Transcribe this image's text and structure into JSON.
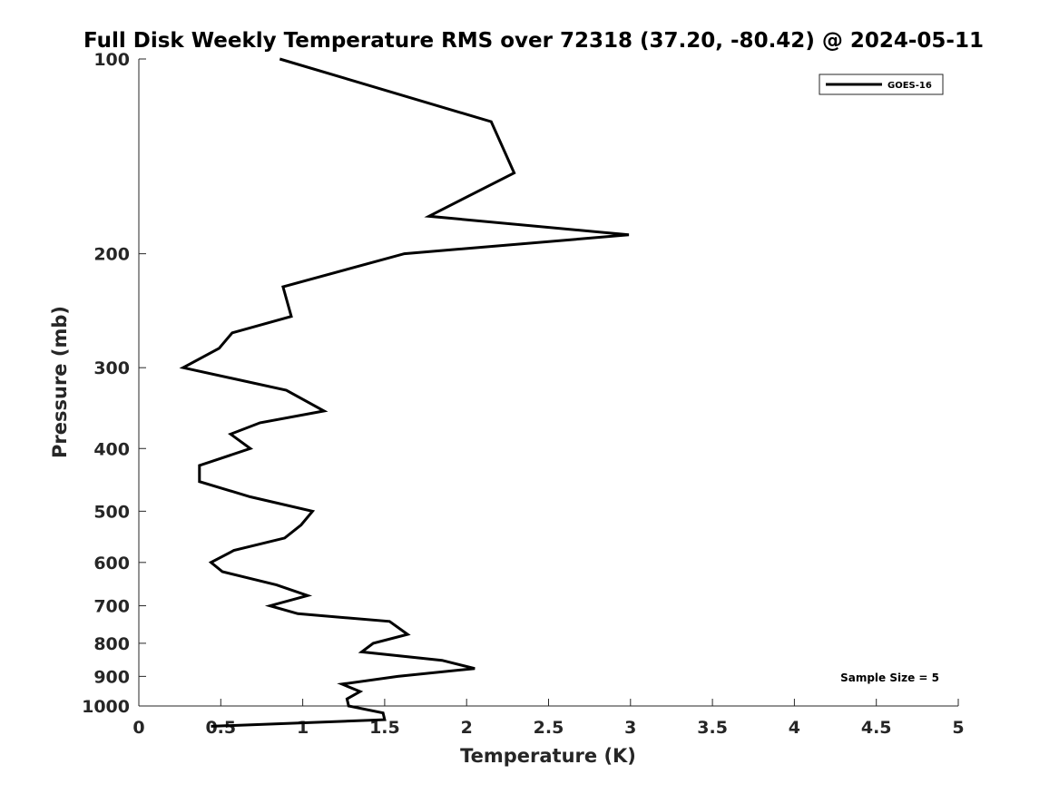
{
  "chart_data": {
    "type": "line",
    "title": "Full Disk Weekly Temperature RMS over 72318 (37.20, -80.42) @ 2024-05-11",
    "xlabel": "Temperature (K)",
    "ylabel": "Pressure (mb)",
    "xlim": [
      0,
      5
    ],
    "ylim": [
      100,
      1000
    ],
    "y_scale": "log",
    "y_reversed": true,
    "grid": false,
    "x_ticks": [
      "0",
      "0.5",
      "1",
      "1.5",
      "2",
      "2.5",
      "3",
      "3.5",
      "4",
      "4.5",
      "5"
    ],
    "y_ticks": [
      "100",
      "200",
      "300",
      "400",
      "500",
      "600",
      "700",
      "800",
      "900",
      "1000"
    ],
    "legend_position": "top-right",
    "series": [
      {
        "name": "GOES-16",
        "color": "#000000",
        "points": [
          [
            0.86,
            100
          ],
          [
            2.15,
            125
          ],
          [
            2.29,
            150
          ],
          [
            1.77,
            175
          ],
          [
            2.99,
            187
          ],
          [
            1.62,
            200
          ],
          [
            0.88,
            225
          ],
          [
            0.93,
            250
          ],
          [
            0.57,
            265
          ],
          [
            0.49,
            280
          ],
          [
            0.27,
            300
          ],
          [
            0.9,
            325
          ],
          [
            1.13,
            350
          ],
          [
            0.74,
            365
          ],
          [
            0.56,
            380
          ],
          [
            0.68,
            400
          ],
          [
            0.37,
            425
          ],
          [
            0.37,
            450
          ],
          [
            0.68,
            475
          ],
          [
            1.06,
            500
          ],
          [
            0.99,
            525
          ],
          [
            0.89,
            550
          ],
          [
            0.58,
            575
          ],
          [
            0.44,
            600
          ],
          [
            0.51,
            620
          ],
          [
            0.84,
            650
          ],
          [
            1.03,
            675
          ],
          [
            0.8,
            700
          ],
          [
            0.97,
            720
          ],
          [
            1.53,
            740
          ],
          [
            1.64,
            775
          ],
          [
            1.43,
            800
          ],
          [
            1.36,
            825
          ],
          [
            1.85,
            850
          ],
          [
            2.05,
            875
          ],
          [
            1.58,
            900
          ],
          [
            1.24,
            925
          ],
          [
            1.35,
            950
          ],
          [
            1.27,
            975
          ],
          [
            1.28,
            1000
          ],
          [
            1.49,
            1025
          ],
          [
            1.5,
            1050
          ],
          [
            0.44,
            1075
          ]
        ]
      }
    ],
    "annotations": [
      "Sample Size = 5"
    ]
  }
}
